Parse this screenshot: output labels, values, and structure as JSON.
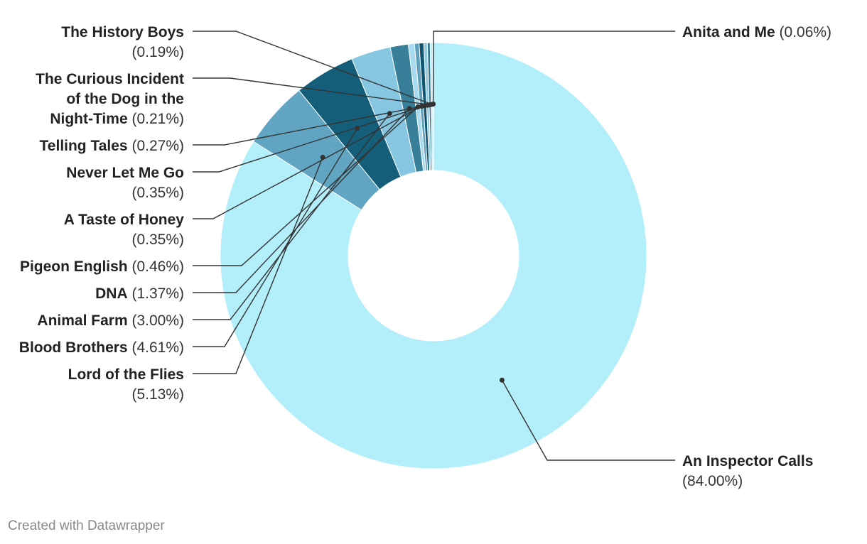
{
  "chart_data": {
    "type": "pie",
    "style": "donut",
    "slices": [
      {
        "label": "An Inspector Calls",
        "value": 84.0,
        "display": "84.00%",
        "color": "#b3eefb"
      },
      {
        "label": "Lord of the Flies",
        "value": 5.13,
        "display": "5.13%",
        "color": "#61a5c2"
      },
      {
        "label": "Blood Brothers",
        "value": 4.61,
        "display": "4.61%",
        "color": "#155e7a"
      },
      {
        "label": "Animal Farm",
        "value": 3.0,
        "display": "3.00%",
        "color": "#86c6e1"
      },
      {
        "label": "DNA",
        "value": 1.37,
        "display": "1.37%",
        "color": "#387f9a"
      },
      {
        "label": "Pigeon English",
        "value": 0.46,
        "display": "0.46%",
        "color": "#a8daf0"
      },
      {
        "label": "A Taste of Honey",
        "value": 0.35,
        "display": "0.35%",
        "color": "#5e9fbb"
      },
      {
        "label": "Never Let Me Go",
        "value": 0.35,
        "display": "0.35%",
        "color": "#0d5573"
      },
      {
        "label": "Telling Tales",
        "value": 0.27,
        "display": "0.27%",
        "color": "#93cbe2"
      },
      {
        "label": "The Curious Incident of the Dog in the Night-Time",
        "value": 0.21,
        "display": "0.21%",
        "color": "#2f7692"
      },
      {
        "label": "The History Boys",
        "value": 0.19,
        "display": "0.19%",
        "color": "#c3ecf9"
      },
      {
        "label": "Anita and Me",
        "value": 0.06,
        "display": "0.06%",
        "color": "#4a8fae"
      }
    ]
  },
  "footer": "Created with Datawrapper"
}
